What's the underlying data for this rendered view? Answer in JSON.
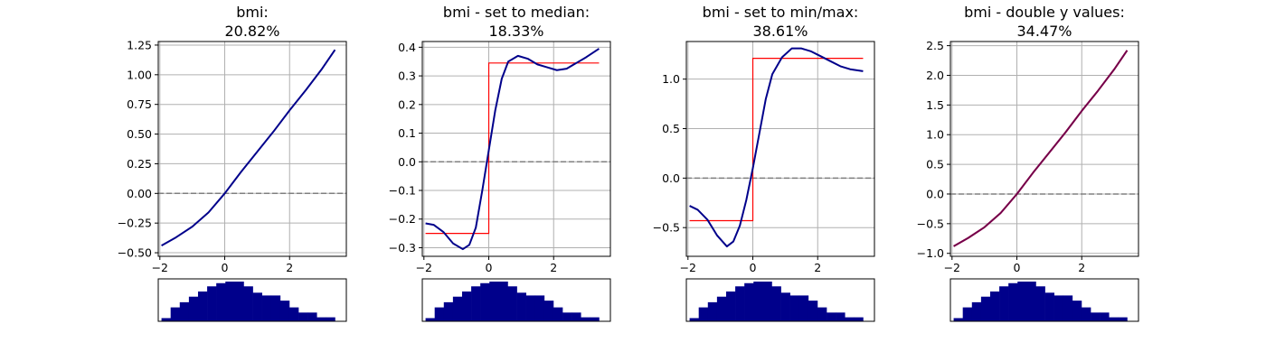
{
  "chart_data": [
    {
      "type": "line",
      "title": [
        "bmi:",
        "20.82%"
      ],
      "xlim": [
        -2.05,
        3.75
      ],
      "ylim": [
        -0.53,
        1.28
      ],
      "xticks": [
        {
          "v": -2,
          "label": "−2"
        },
        {
          "v": 0,
          "label": "0"
        },
        {
          "v": 2,
          "label": "2"
        }
      ],
      "yticks": [
        {
          "v": -0.5,
          "label": "−0.50"
        },
        {
          "v": -0.25,
          "label": "−0.25"
        },
        {
          "v": 0,
          "label": "0.00"
        },
        {
          "v": 0.25,
          "label": "0.25"
        },
        {
          "v": 0.5,
          "label": "0.50"
        },
        {
          "v": 0.75,
          "label": "0.75"
        },
        {
          "v": 1.0,
          "label": "1.00"
        },
        {
          "v": 1.25,
          "label": "1.25"
        }
      ],
      "grid": true,
      "baseline": 0,
      "series": [
        {
          "color": "#00008b",
          "points": [
            [
              -1.95,
              -0.44
            ],
            [
              -1.5,
              -0.37
            ],
            [
              -1.0,
              -0.28
            ],
            [
              -0.5,
              -0.16
            ],
            [
              0,
              0
            ],
            [
              0.5,
              0.18
            ],
            [
              1.0,
              0.35
            ],
            [
              1.5,
              0.52
            ],
            [
              2.0,
              0.7
            ],
            [
              2.5,
              0.87
            ],
            [
              3.0,
              1.05
            ],
            [
              3.4,
              1.21
            ]
          ]
        }
      ],
      "steps": [],
      "histogram": [
        0.08,
        0.35,
        0.48,
        0.62,
        0.75,
        0.88,
        0.96,
        1.0,
        1.0,
        0.88,
        0.72,
        0.65,
        0.65,
        0.52,
        0.35,
        0.22,
        0.22,
        0.1,
        0.1
      ]
    },
    {
      "type": "line",
      "title": [
        "bmi - set to median:",
        "18.33%"
      ],
      "xlim": [
        -2.05,
        3.75
      ],
      "ylim": [
        -0.33,
        0.42
      ],
      "xticks": [
        {
          "v": -2,
          "label": "−2"
        },
        {
          "v": 0,
          "label": "0"
        },
        {
          "v": 2,
          "label": "2"
        }
      ],
      "yticks": [
        {
          "v": -0.3,
          "label": "−0.3"
        },
        {
          "v": -0.2,
          "label": "−0.2"
        },
        {
          "v": -0.1,
          "label": "−0.1"
        },
        {
          "v": 0,
          "label": "0.0"
        },
        {
          "v": 0.1,
          "label": "0.1"
        },
        {
          "v": 0.2,
          "label": "0.2"
        },
        {
          "v": 0.3,
          "label": "0.3"
        },
        {
          "v": 0.4,
          "label": "0.4"
        }
      ],
      "grid": true,
      "baseline": 0,
      "series": [
        {
          "color": "#00008b",
          "points": [
            [
              -1.95,
              -0.215
            ],
            [
              -1.7,
              -0.22
            ],
            [
              -1.4,
              -0.245
            ],
            [
              -1.1,
              -0.285
            ],
            [
              -0.8,
              -0.305
            ],
            [
              -0.6,
              -0.29
            ],
            [
              -0.4,
              -0.23
            ],
            [
              -0.2,
              -0.1
            ],
            [
              0,
              0.04
            ],
            [
              0.2,
              0.18
            ],
            [
              0.4,
              0.29
            ],
            [
              0.6,
              0.35
            ],
            [
              0.9,
              0.37
            ],
            [
              1.2,
              0.36
            ],
            [
              1.5,
              0.34
            ],
            [
              1.8,
              0.33
            ],
            [
              2.1,
              0.32
            ],
            [
              2.4,
              0.325
            ],
            [
              2.7,
              0.345
            ],
            [
              3.0,
              0.365
            ],
            [
              3.4,
              0.395
            ]
          ]
        }
      ],
      "steps": [
        {
          "color": "#ff0000",
          "points": [
            [
              -1.95,
              -0.25
            ],
            [
              0,
              -0.25
            ],
            [
              0,
              0.345
            ],
            [
              3.4,
              0.345
            ]
          ]
        }
      ],
      "histogram": [
        0.08,
        0.35,
        0.48,
        0.62,
        0.75,
        0.88,
        0.96,
        1.0,
        1.0,
        0.88,
        0.72,
        0.65,
        0.65,
        0.52,
        0.35,
        0.22,
        0.22,
        0.1,
        0.1
      ]
    },
    {
      "type": "line",
      "title": [
        "bmi - set to min/max:",
        "38.61%"
      ],
      "xlim": [
        -2.05,
        3.75
      ],
      "ylim": [
        -0.79,
        1.38
      ],
      "xticks": [
        {
          "v": -2,
          "label": "−2"
        },
        {
          "v": 0,
          "label": "0"
        },
        {
          "v": 2,
          "label": "2"
        }
      ],
      "yticks": [
        {
          "v": -0.5,
          "label": "−0.5"
        },
        {
          "v": 0,
          "label": "0.0"
        },
        {
          "v": 0.5,
          "label": "0.5"
        },
        {
          "v": 1.0,
          "label": "1.0"
        }
      ],
      "grid": true,
      "baseline": 0,
      "series": [
        {
          "color": "#00008b",
          "points": [
            [
              -1.95,
              -0.28
            ],
            [
              -1.7,
              -0.32
            ],
            [
              -1.4,
              -0.42
            ],
            [
              -1.1,
              -0.58
            ],
            [
              -0.8,
              -0.69
            ],
            [
              -0.6,
              -0.64
            ],
            [
              -0.4,
              -0.48
            ],
            [
              -0.2,
              -0.22
            ],
            [
              0,
              0.1
            ],
            [
              0.2,
              0.45
            ],
            [
              0.4,
              0.8
            ],
            [
              0.6,
              1.05
            ],
            [
              0.9,
              1.22
            ],
            [
              1.2,
              1.31
            ],
            [
              1.5,
              1.31
            ],
            [
              1.8,
              1.28
            ],
            [
              2.1,
              1.23
            ],
            [
              2.4,
              1.18
            ],
            [
              2.7,
              1.13
            ],
            [
              3.0,
              1.1
            ],
            [
              3.4,
              1.08
            ]
          ]
        }
      ],
      "steps": [
        {
          "color": "#ff0000",
          "points": [
            [
              -1.95,
              -0.43
            ],
            [
              0,
              -0.43
            ],
            [
              0,
              1.21
            ],
            [
              3.4,
              1.21
            ]
          ]
        }
      ],
      "histogram": [
        0.08,
        0.35,
        0.48,
        0.62,
        0.75,
        0.88,
        0.96,
        1.0,
        1.0,
        0.88,
        0.72,
        0.65,
        0.65,
        0.52,
        0.35,
        0.22,
        0.22,
        0.1,
        0.1
      ]
    },
    {
      "type": "line",
      "title": [
        "bmi - double y values:",
        "34.47%"
      ],
      "xlim": [
        -2.05,
        3.75
      ],
      "ylim": [
        -1.05,
        2.57
      ],
      "xticks": [
        {
          "v": -2,
          "label": "−2"
        },
        {
          "v": 0,
          "label": "0"
        },
        {
          "v": 2,
          "label": "2"
        }
      ],
      "yticks": [
        {
          "v": -1.0,
          "label": "−1.0"
        },
        {
          "v": -0.5,
          "label": "−0.5"
        },
        {
          "v": 0,
          "label": "0.0"
        },
        {
          "v": 0.5,
          "label": "0.5"
        },
        {
          "v": 1.0,
          "label": "1.0"
        },
        {
          "v": 1.5,
          "label": "1.5"
        },
        {
          "v": 2.0,
          "label": "2.0"
        },
        {
          "v": 2.5,
          "label": "2.5"
        }
      ],
      "grid": true,
      "baseline": 0,
      "series": [
        {
          "color": "#ff0000",
          "points": [
            [
              -1.95,
              -0.88
            ],
            [
              -1.5,
              -0.74
            ],
            [
              -1.0,
              -0.56
            ],
            [
              -0.5,
              -0.32
            ],
            [
              0,
              0
            ],
            [
              0.5,
              0.36
            ],
            [
              1.0,
              0.7
            ],
            [
              1.5,
              1.04
            ],
            [
              2.0,
              1.4
            ],
            [
              2.5,
              1.74
            ],
            [
              3.0,
              2.1
            ],
            [
              3.4,
              2.42
            ]
          ]
        },
        {
          "color": "#00008b",
          "points": [
            [
              -1.95,
              -0.88
            ],
            [
              -1.5,
              -0.74
            ],
            [
              -1.0,
              -0.56
            ],
            [
              -0.5,
              -0.32
            ],
            [
              0,
              0
            ],
            [
              0.5,
              0.36
            ],
            [
              1.0,
              0.7
            ],
            [
              1.5,
              1.04
            ],
            [
              2.0,
              1.4
            ],
            [
              2.5,
              1.74
            ],
            [
              3.0,
              2.1
            ],
            [
              3.4,
              2.42
            ]
          ],
          "opacity": 0.55
        }
      ],
      "steps": [],
      "histogram": [
        0.08,
        0.35,
        0.48,
        0.62,
        0.75,
        0.88,
        0.96,
        1.0,
        1.0,
        0.88,
        0.72,
        0.65,
        0.65,
        0.52,
        0.35,
        0.22,
        0.22,
        0.1,
        0.1
      ]
    }
  ]
}
